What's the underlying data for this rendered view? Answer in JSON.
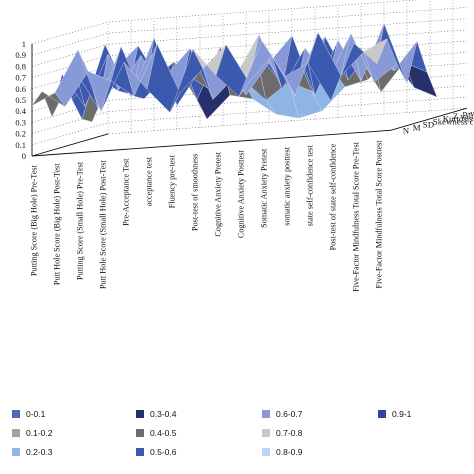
{
  "chart_data": {
    "type": "surface",
    "title": "",
    "xlabel": "",
    "ylabel": "",
    "zlim": [
      0,
      1
    ],
    "z_ticks": [
      "0",
      "0.1",
      "0.2",
      "0.3",
      "0.4",
      "0.5",
      "0.6",
      "0.7",
      "0.8",
      "0.9",
      "1"
    ],
    "grid": true,
    "legend_position": "bottom",
    "categories": [
      "Putting Score (Big Hole) Pre-Test",
      "Putt Hole Score (Big Hole) Post-Test",
      "Putting Score (Small Hole) Pre-Test",
      "Putt Hole Score (Small Hole) Post-Test",
      "Pre-Acceptance Test",
      "acceptance test",
      "Fluency pre-test",
      "Post-test of smoothness",
      "Cognitive Anxiety Pretest",
      "Cognitive Anxiety Posttest",
      "Somatic Anxiety Pretest",
      "somatic anxiety posttest",
      "state self-confidence test",
      "Post-test of state self-confidence",
      "Five-Factor Mindfulness Total Score Pre-Test",
      "Five-Factor Mindfulness Total Score Posttest"
    ],
    "statistics": [
      "p-value",
      "Z value",
      "Kurtosis coefficient",
      "Skewness coefficient",
      "SD",
      "M",
      "N"
    ],
    "series": [
      {
        "name": "p-value",
        "values": [
          0.45,
          0.55,
          0.92,
          0.35,
          0.78,
          0.52,
          0.3,
          0.85,
          0.6,
          0.4,
          0.88,
          0.55,
          0.65,
          0.3,
          0.8,
          0.6
        ]
      },
      {
        "name": "Z value",
        "values": [
          0.55,
          0.4,
          0.7,
          0.6,
          0.45,
          0.9,
          0.45,
          0.65,
          0.85,
          0.5,
          0.72,
          0.35,
          0.9,
          0.5,
          0.7,
          0.8
        ]
      },
      {
        "name": "Kurtosis coefficient",
        "values": [
          0.3,
          0.7,
          0.35,
          0.88,
          0.4,
          0.6,
          0.82,
          0.35,
          0.55,
          0.9,
          0.4,
          0.75,
          0.45,
          0.85,
          0.4,
          0.55
        ]
      },
      {
        "name": "Skewness coefficient",
        "values": [
          0.65,
          0.35,
          0.8,
          0.4,
          0.92,
          0.3,
          0.6,
          0.7,
          0.35,
          0.62,
          0.85,
          0.3,
          0.78,
          0.4,
          0.9,
          0.35
        ]
      },
      {
        "name": "SD",
        "values": [
          0.4,
          0.6,
          0.45,
          0.75,
          0.35,
          0.55,
          0.4,
          0.5,
          0.7,
          0.45,
          0.55,
          0.8,
          0.4,
          0.65,
          0.45,
          0.7
        ]
      },
      {
        "name": "M",
        "values": [
          0.2,
          0.85,
          0.4,
          0.5,
          0.65,
          0.3,
          0.75,
          0.45,
          0.25,
          0.4,
          0.3,
          0.45,
          0.6,
          0.25,
          0.5,
          0.4
        ]
      },
      {
        "name": "N",
        "values": [
          0.15,
          0.6,
          0.8,
          0.45,
          0.55,
          0.1,
          0.3,
          0.25,
          0.1,
          0.05,
          0.1,
          0.3,
          0.35,
          0.55,
          0.25,
          0.15
        ]
      }
    ],
    "legend": [
      {
        "label": "0-0.1",
        "color": "#4f69ad"
      },
      {
        "label": "0.1-0.2",
        "color": "#a3a3a3"
      },
      {
        "label": "0.2-0.3",
        "color": "#8fb4e6"
      },
      {
        "label": "0.3-0.4",
        "color": "#26316b"
      },
      {
        "label": "0.4-0.5",
        "color": "#6c6c6c"
      },
      {
        "label": "0.5-0.6",
        "color": "#3c59b0"
      },
      {
        "label": "0.6-0.7",
        "color": "#8899d8"
      },
      {
        "label": "0.7-0.8",
        "color": "#c8c8c8"
      },
      {
        "label": "0.8-0.9",
        "color": "#bcd4f2"
      },
      {
        "label": "0.9-1",
        "color": "#2c47a3"
      }
    ]
  }
}
